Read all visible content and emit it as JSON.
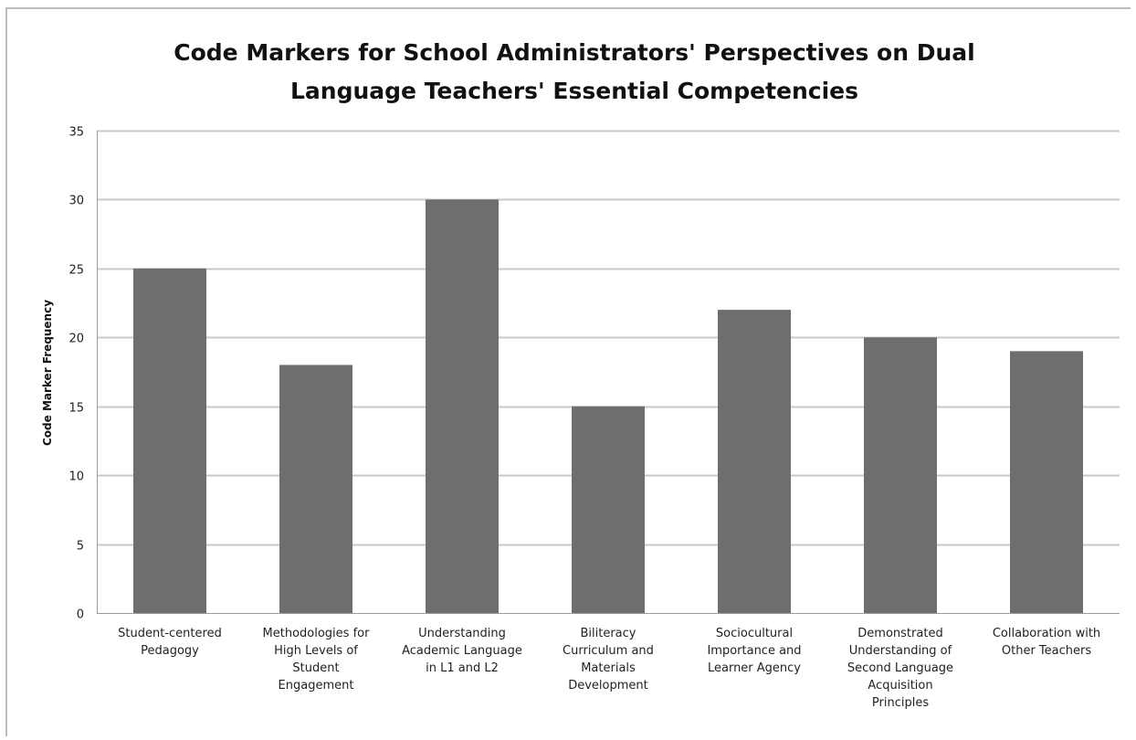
{
  "chart_data": {
    "type": "bar",
    "title": "Code Markers for School Administrators' Perspectives on Dual Language Teachers' Essential Competencies",
    "title_lines": [
      "Code Markers for School Administrators' Perspectives on Dual",
      "Language Teachers' Essential Competencies"
    ],
    "xlabel": "",
    "ylabel": "Code Marker Frequency",
    "ylim": [
      0,
      35
    ],
    "yticks": [
      0,
      5,
      10,
      15,
      20,
      25,
      30,
      35
    ],
    "grid": true,
    "legend": "none",
    "categories": [
      "Student-centered Pedagogy",
      "Methodologies for High Levels of Student Engagement",
      "Understanding Academic Language in L1 and L2",
      "Biliteracy Curriculum and Materials Development",
      "Sociocultural Importance and Learner Agency",
      "Demonstrated Understanding of Second Language Acquisition Principles",
      "Collaboration with Other Teachers"
    ],
    "category_label_lines": [
      [
        "Student-centered",
        "Pedagogy"
      ],
      [
        "Methodologies for",
        "High Levels of",
        "Student",
        "Engagement"
      ],
      [
        "Understanding",
        "Academic Language",
        "in L1 and L2"
      ],
      [
        "Biliteracy",
        "Curriculum and",
        "Materials",
        "Development"
      ],
      [
        "Sociocultural",
        "Importance and",
        "Learner Agency"
      ],
      [
        "Demonstrated",
        "Understanding of",
        "Second Language",
        "Acquisition",
        "Principles"
      ],
      [
        "Collaboration with",
        "Other Teachers"
      ]
    ],
    "values": [
      25,
      18,
      30,
      15,
      22,
      20,
      19
    ],
    "colors": {
      "bar": "#6e6e6e",
      "grid": "#c8c8c8",
      "axis": "#9a9a9a",
      "frame": "#bdbdbd"
    }
  }
}
